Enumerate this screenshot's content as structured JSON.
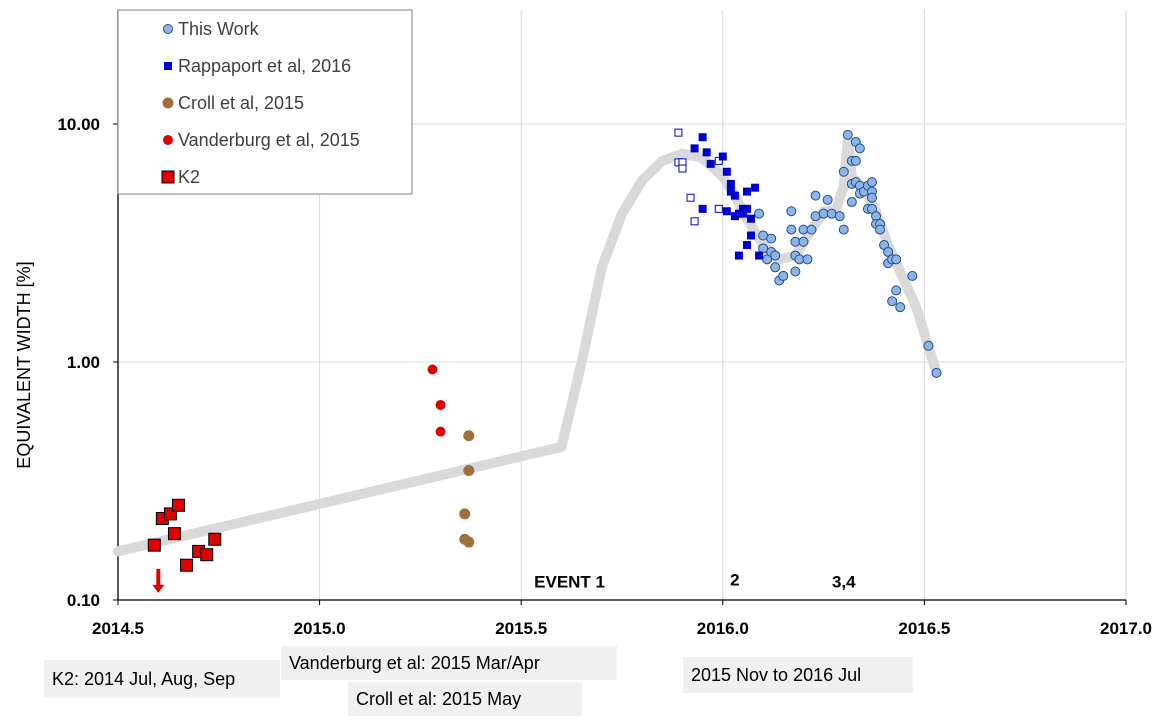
{
  "chart_data": {
    "type": "scatter",
    "y_scale": "log",
    "ylabel": "EQUIVALENT WIDTH [%]",
    "xlabel": "",
    "title": "",
    "xlim": [
      2014.5,
      2017.0
    ],
    "ylim": [
      0.1,
      25
    ],
    "x_ticks": [
      2014.5,
      2015.0,
      2015.5,
      2016.0,
      2016.5,
      2017.0
    ],
    "x_tick_labels": [
      "2014.5",
      "2015.0",
      "2015.5",
      "2016.0",
      "2016.5",
      "2017.0"
    ],
    "y_ticks": [
      0.1,
      1.0,
      10.0
    ],
    "y_tick_labels": [
      "0.10",
      "1.00",
      "10.00"
    ],
    "grid": true,
    "legend_position": "top-left",
    "colors": {
      "this_work": "#8db4e2",
      "this_work_edge": "#1f4e99",
      "rappaport": "#0000cc",
      "croll": "#a0703c",
      "vanderburg": "#e00000",
      "k2": "#e00000",
      "trend": "#d9d9d9",
      "arrow": "#e00000"
    },
    "series": [
      {
        "name": "This Work",
        "marker": "circle",
        "points": [
          [
            2016.09,
            4.2
          ],
          [
            2016.1,
            3.4
          ],
          [
            2016.1,
            3.0
          ],
          [
            2016.11,
            2.7
          ],
          [
            2016.12,
            3.3
          ],
          [
            2016.12,
            2.9
          ],
          [
            2016.13,
            2.5
          ],
          [
            2016.13,
            2.8
          ],
          [
            2016.14,
            2.2
          ],
          [
            2016.15,
            2.3
          ],
          [
            2016.17,
            4.3
          ],
          [
            2016.17,
            3.6
          ],
          [
            2016.18,
            3.2
          ],
          [
            2016.18,
            2.8
          ],
          [
            2016.18,
            2.4
          ],
          [
            2016.19,
            2.7
          ],
          [
            2016.2,
            3.6
          ],
          [
            2016.2,
            3.2
          ],
          [
            2016.21,
            2.7
          ],
          [
            2016.22,
            3.6
          ],
          [
            2016.23,
            4.1
          ],
          [
            2016.23,
            5.0
          ],
          [
            2016.25,
            4.2
          ],
          [
            2016.26,
            4.8
          ],
          [
            2016.27,
            4.2
          ],
          [
            2016.29,
            4.1
          ],
          [
            2016.3,
            3.6
          ],
          [
            2016.3,
            6.3
          ],
          [
            2016.31,
            9.0
          ],
          [
            2016.32,
            7.0
          ],
          [
            2016.32,
            5.6
          ],
          [
            2016.32,
            4.7
          ],
          [
            2016.33,
            8.4
          ],
          [
            2016.33,
            7.0
          ],
          [
            2016.33,
            5.7
          ],
          [
            2016.34,
            7.9
          ],
          [
            2016.34,
            5.5
          ],
          [
            2016.34,
            5.1
          ],
          [
            2016.35,
            5.2
          ],
          [
            2016.36,
            5.5
          ],
          [
            2016.36,
            4.4
          ],
          [
            2016.37,
            5.7
          ],
          [
            2016.37,
            5.2
          ],
          [
            2016.37,
            4.9
          ],
          [
            2016.37,
            4.4
          ],
          [
            2016.38,
            4.1
          ],
          [
            2016.38,
            3.8
          ],
          [
            2016.39,
            3.8
          ],
          [
            2016.39,
            3.6
          ],
          [
            2016.4,
            3.1
          ],
          [
            2016.41,
            2.9
          ],
          [
            2016.41,
            2.6
          ],
          [
            2016.42,
            2.7
          ],
          [
            2016.42,
            1.8
          ],
          [
            2016.43,
            2.7
          ],
          [
            2016.43,
            2.0
          ],
          [
            2016.44,
            1.7
          ],
          [
            2016.47,
            2.3
          ],
          [
            2016.51,
            1.17
          ],
          [
            2016.53,
            0.9
          ]
        ]
      },
      {
        "name": "Rappaport et al, 2016",
        "marker": "square",
        "points": [
          [
            2015.93,
            7.9
          ],
          [
            2015.95,
            8.8
          ],
          [
            2015.96,
            7.6
          ],
          [
            2015.97,
            6.8
          ],
          [
            2016.0,
            7.3
          ],
          [
            2016.01,
            6.3
          ],
          [
            2016.02,
            5.6
          ],
          [
            2016.02,
            5.2
          ],
          [
            2016.03,
            5.0
          ],
          [
            2016.04,
            4.2
          ],
          [
            2016.05,
            4.4
          ],
          [
            2016.06,
            4.4
          ],
          [
            2016.06,
            5.2
          ],
          [
            2016.07,
            4.0
          ],
          [
            2016.08,
            5.4
          ],
          [
            2016.07,
            3.4
          ],
          [
            2016.06,
            3.1
          ],
          [
            2016.04,
            2.8
          ],
          [
            2016.09,
            2.8
          ],
          [
            2016.05,
            4.2
          ],
          [
            2015.95,
            4.4
          ],
          [
            2016.01,
            4.3
          ],
          [
            2016.03,
            4.1
          ]
        ],
        "hollow_points": [
          [
            2015.89,
            9.2
          ],
          [
            2015.89,
            6.9
          ],
          [
            2015.9,
            6.9
          ],
          [
            2015.9,
            6.5
          ],
          [
            2015.92,
            4.9
          ],
          [
            2015.93,
            3.9
          ],
          [
            2015.99,
            7.0
          ],
          [
            2015.99,
            4.4
          ]
        ]
      },
      {
        "name": "Croll et al, 2015",
        "marker": "circle",
        "points": [
          [
            2015.37,
            0.49
          ],
          [
            2015.37,
            0.35
          ],
          [
            2015.36,
            0.23
          ],
          [
            2015.36,
            0.18
          ],
          [
            2015.37,
            0.175
          ]
        ]
      },
      {
        "name": "Vanderburg et al, 2015",
        "marker": "circle",
        "points": [
          [
            2015.28,
            0.93
          ],
          [
            2015.3,
            0.66
          ],
          [
            2015.3,
            0.51
          ]
        ]
      },
      {
        "name": "K2",
        "marker": "square",
        "points": [
          [
            2014.59,
            0.17
          ],
          [
            2014.61,
            0.22
          ],
          [
            2014.63,
            0.23
          ],
          [
            2014.64,
            0.19
          ],
          [
            2014.65,
            0.25
          ],
          [
            2014.67,
            0.14
          ],
          [
            2014.7,
            0.16
          ],
          [
            2014.72,
            0.155
          ],
          [
            2014.74,
            0.18
          ]
        ]
      }
    ],
    "trend_line": [
      [
        2014.5,
        0.16
      ],
      [
        2015.6,
        0.44
      ],
      [
        2015.65,
        1.0
      ],
      [
        2015.7,
        2.5
      ],
      [
        2015.75,
        4.2
      ],
      [
        2015.8,
        5.8
      ],
      [
        2015.85,
        7.0
      ],
      [
        2015.9,
        7.5
      ],
      [
        2015.95,
        7.2
      ],
      [
        2016.0,
        6.0
      ],
      [
        2016.03,
        5.0
      ],
      [
        2016.06,
        4.0
      ],
      [
        2016.1,
        3.1
      ],
      [
        2016.14,
        2.7
      ],
      [
        2016.18,
        2.8
      ],
      [
        2016.22,
        3.6
      ],
      [
        2016.25,
        4.3
      ],
      [
        2016.28,
        4.3
      ],
      [
        2016.3,
        5.5
      ],
      [
        2016.31,
        8.6
      ],
      [
        2016.32,
        6.0
      ],
      [
        2016.35,
        5.3
      ],
      [
        2016.38,
        4.3
      ],
      [
        2016.41,
        3.1
      ],
      [
        2016.44,
        2.4
      ],
      [
        2016.48,
        1.7
      ],
      [
        2016.53,
        0.9
      ]
    ],
    "annotations": [
      {
        "text": "EVENT 1",
        "x": 2015.62,
        "y": 0.113
      },
      {
        "text": "2",
        "x": 2216.03,
        "y": 0.115
      },
      {
        "text": "3,4",
        "x": 2016.3,
        "y": 0.113
      }
    ],
    "upper_limit_arrow": {
      "x": 2014.6,
      "y": 0.13
    }
  },
  "captions": {
    "k2": "K2: 2014 Jul, Aug, Sep",
    "vanderburg": "Vanderburg et al: 2015 Mar/Apr",
    "croll": "Croll et al: 2015 May",
    "this_work": "2015 Nov to 2016 Jul"
  }
}
